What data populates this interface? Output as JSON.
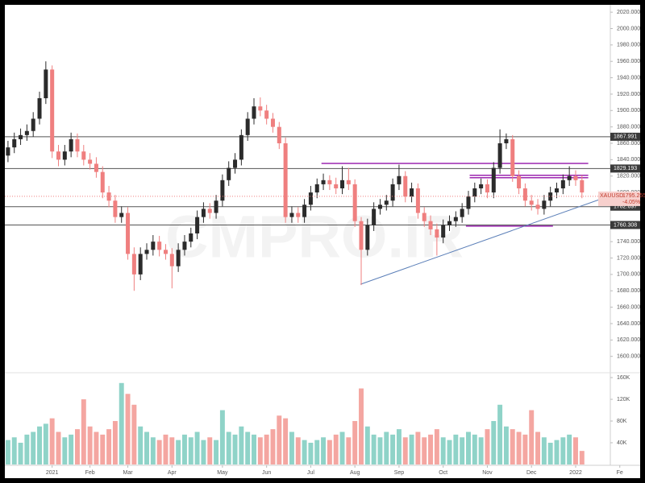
{
  "chart_data": {
    "type": "candlestick",
    "watermark": "CMPRO.IR",
    "symbol": "XAUUSD",
    "last_price": 1795.255,
    "change": "-4.05%",
    "up_color": "#2b2b2b",
    "down_color": "#ef7f7f",
    "xlim": [
      -0.5,
      95.5
    ],
    "xticks": [
      {
        "value": 7,
        "label": "2021"
      },
      {
        "value": 13,
        "label": "Feb"
      },
      {
        "value": 19,
        "label": "Mar"
      },
      {
        "value": 26,
        "label": "Apr"
      },
      {
        "value": 34,
        "label": "May"
      },
      {
        "value": 41,
        "label": "Jun"
      },
      {
        "value": 48,
        "label": "Jul"
      },
      {
        "value": 55,
        "label": "Aug"
      },
      {
        "value": 62,
        "label": "Sep"
      },
      {
        "value": 69,
        "label": "Oct"
      },
      {
        "value": 76,
        "label": "Nov"
      },
      {
        "value": 83,
        "label": "Dec"
      },
      {
        "value": 90,
        "label": "2022"
      },
      {
        "value": 97,
        "label": "Fe"
      }
    ],
    "ylim": [
      1583,
      2027
    ],
    "yticks": [
      {
        "value": 1600,
        "label": "1600.000"
      },
      {
        "value": 1620,
        "label": "1620.000"
      },
      {
        "value": 1640,
        "label": "1640.000"
      },
      {
        "value": 1660,
        "label": "1660.000"
      },
      {
        "value": 1680,
        "label": "1680.000"
      },
      {
        "value": 1700,
        "label": "1700.000"
      },
      {
        "value": 1720,
        "label": "1720.000"
      },
      {
        "value": 1740,
        "label": "1740.000"
      },
      {
        "value": 1760,
        "label": "1760.000"
      },
      {
        "value": 1780,
        "label": "1780.000"
      },
      {
        "value": 1800,
        "label": "1800.000"
      },
      {
        "value": 1820,
        "label": "1820.000"
      },
      {
        "value": 1840,
        "label": "1840.000"
      },
      {
        "value": 1860,
        "label": "1860.000"
      },
      {
        "value": 1880,
        "label": "1880.000"
      },
      {
        "value": 1900,
        "label": "1900.000"
      },
      {
        "value": 1920,
        "label": "1920.000"
      },
      {
        "value": 1940,
        "label": "1940.000"
      },
      {
        "value": 1960,
        "label": "1960.000"
      },
      {
        "value": 1980,
        "label": "1980.000"
      },
      {
        "value": 2000,
        "label": "2000.000"
      },
      {
        "value": 2020,
        "label": "2020.000"
      }
    ],
    "open": [
      1845,
      1855,
      1865,
      1870,
      1875,
      1890,
      1915,
      1950,
      1850,
      1840,
      1850,
      1865,
      1850,
      1840,
      1835,
      1825,
      1800,
      1790,
      1770,
      1775,
      1725,
      1700,
      1725,
      1730,
      1740,
      1730,
      1725,
      1710,
      1730,
      1740,
      1750,
      1770,
      1780,
      1775,
      1790,
      1815,
      1830,
      1840,
      1870,
      1890,
      1905,
      1900,
      1890,
      1880,
      1860,
      1770,
      1775,
      1770,
      1785,
      1800,
      1810,
      1815,
      1810,
      1805,
      1815,
      1810,
      1765,
      1730,
      1760,
      1780,
      1785,
      1790,
      1810,
      1820,
      1795,
      1805,
      1775,
      1765,
      1755,
      1745,
      1760,
      1765,
      1770,
      1780,
      1795,
      1805,
      1810,
      1800,
      1830,
      1860,
      1865,
      1820,
      1805,
      1790,
      1785,
      1780,
      1790,
      1800,
      1805,
      1815,
      1820,
      1815
    ],
    "high": [
      1863,
      1873,
      1878,
      1883,
      1898,
      1923,
      1960,
      1955,
      1858,
      1858,
      1873,
      1872,
      1858,
      1848,
      1843,
      1832,
      1808,
      1797,
      1783,
      1782,
      1733,
      1733,
      1738,
      1748,
      1747,
      1737,
      1732,
      1738,
      1748,
      1757,
      1778,
      1788,
      1787,
      1797,
      1822,
      1838,
      1848,
      1877,
      1898,
      1915,
      1916,
      1907,
      1897,
      1886,
      1867,
      1783,
      1782,
      1792,
      1808,
      1817,
      1823,
      1821,
      1818,
      1832,
      1830,
      1816,
      1770,
      1768,
      1788,
      1792,
      1797,
      1817,
      1834,
      1826,
      1812,
      1811,
      1782,
      1772,
      1762,
      1767,
      1772,
      1777,
      1787,
      1802,
      1812,
      1817,
      1816,
      1837,
      1877,
      1872,
      1870,
      1827,
      1811,
      1797,
      1792,
      1797,
      1807,
      1812,
      1822,
      1832,
      1827,
      1821
    ],
    "low": [
      1837,
      1848,
      1858,
      1863,
      1868,
      1883,
      1908,
      1842,
      1832,
      1833,
      1843,
      1843,
      1833,
      1828,
      1818,
      1793,
      1782,
      1763,
      1763,
      1718,
      1680,
      1693,
      1718,
      1723,
      1722,
      1718,
      1683,
      1703,
      1723,
      1733,
      1743,
      1763,
      1768,
      1768,
      1783,
      1808,
      1823,
      1833,
      1863,
      1883,
      1893,
      1883,
      1873,
      1853,
      1763,
      1763,
      1763,
      1763,
      1778,
      1793,
      1803,
      1803,
      1798,
      1798,
      1803,
      1758,
      1687,
      1723,
      1753,
      1773,
      1778,
      1783,
      1803,
      1788,
      1788,
      1768,
      1758,
      1748,
      1723,
      1738,
      1753,
      1758,
      1763,
      1773,
      1788,
      1798,
      1793,
      1793,
      1823,
      1853,
      1813,
      1798,
      1783,
      1778,
      1773,
      1773,
      1783,
      1793,
      1798,
      1808,
      1808,
      1793
    ],
    "close": [
      1855,
      1865,
      1870,
      1875,
      1890,
      1915,
      1950,
      1850,
      1840,
      1850,
      1865,
      1850,
      1840,
      1835,
      1825,
      1800,
      1790,
      1770,
      1775,
      1725,
      1700,
      1725,
      1730,
      1740,
      1730,
      1725,
      1710,
      1730,
      1740,
      1750,
      1770,
      1780,
      1775,
      1790,
      1815,
      1830,
      1840,
      1870,
      1890,
      1905,
      1900,
      1890,
      1880,
      1860,
      1770,
      1775,
      1770,
      1785,
      1800,
      1810,
      1815,
      1810,
      1805,
      1815,
      1810,
      1765,
      1730,
      1760,
      1780,
      1785,
      1790,
      1810,
      1820,
      1795,
      1805,
      1775,
      1765,
      1755,
      1745,
      1760,
      1765,
      1770,
      1780,
      1795,
      1805,
      1810,
      1800,
      1830,
      1860,
      1865,
      1820,
      1805,
      1790,
      1785,
      1780,
      1790,
      1800,
      1805,
      1815,
      1820,
      1815,
      1800
    ],
    "levels": [
      1867.991,
      1829.193,
      1782.697,
      1760.308
    ],
    "level_color": "#555555",
    "zones": [
      {
        "x": [
          49.7,
          92
        ],
        "y": 1835.5
      },
      {
        "x": [
          73.2,
          92
        ],
        "y": 1821
      },
      {
        "x": [
          73.2,
          92
        ],
        "y": 1818
      },
      {
        "x": [
          72.6,
          86.4
        ],
        "y": 1759
      }
    ],
    "zone_color": "#9c27b0",
    "trendline": {
      "x": [
        55.9,
        94
      ],
      "y": [
        1688,
        1792
      ],
      "color": "#5b7fb8"
    },
    "volume": {
      "up_color": "#8fd3c8",
      "down_color": "#f4a6a1",
      "ylim": [
        0,
        166000
      ],
      "yticks": [
        {
          "value": 40000,
          "label": "40K"
        },
        {
          "value": 80000,
          "label": "80K"
        },
        {
          "value": 120000,
          "label": "120K"
        },
        {
          "value": 160000,
          "label": "160K"
        }
      ],
      "values": [
        45000,
        50000,
        40000,
        55000,
        60000,
        70000,
        75000,
        85000,
        60000,
        50000,
        55000,
        65000,
        120000,
        70000,
        60000,
        55000,
        65000,
        80000,
        150000,
        130000,
        110000,
        70000,
        60000,
        50000,
        45000,
        55000,
        50000,
        45000,
        55000,
        50000,
        60000,
        45000,
        50000,
        45000,
        100000,
        60000,
        55000,
        70000,
        60000,
        55000,
        50000,
        55000,
        65000,
        90000,
        85000,
        60000,
        50000,
        45000,
        40000,
        45000,
        50000,
        45000,
        55000,
        60000,
        50000,
        80000,
        140000,
        70000,
        55000,
        50000,
        60000,
        55000,
        65000,
        50000,
        55000,
        60000,
        50000,
        55000,
        65000,
        50000,
        45000,
        55000,
        50000,
        60000,
        55000,
        50000,
        65000,
        80000,
        110000,
        70000,
        65000,
        60000,
        55000,
        100000,
        60000,
        50000,
        40000,
        45000,
        50000,
        55000,
        50000,
        25000
      ]
    }
  }
}
